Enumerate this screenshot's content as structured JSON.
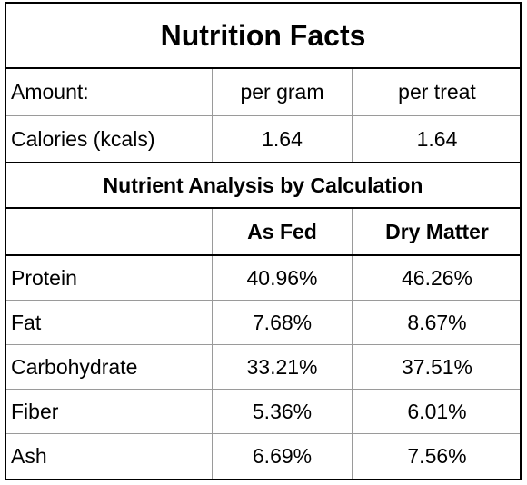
{
  "title": "Nutrition Facts",
  "amount_header": {
    "label": "Amount:",
    "col1": "per gram",
    "col2": "per treat"
  },
  "calories": {
    "label": "Calories (kcals)",
    "col1": "1.64",
    "col2": "1.64"
  },
  "analysis": {
    "title": "Nutrient Analysis by Calculation",
    "blank": "",
    "col1_header": "As Fed",
    "col2_header": "Dry Matter",
    "rows": [
      {
        "label": "Protein",
        "as_fed": "40.96%",
        "dry_matter": "46.26%"
      },
      {
        "label": "Fat",
        "as_fed": "7.68%",
        "dry_matter": "8.67%"
      },
      {
        "label": "Carbohydrate",
        "as_fed": "33.21%",
        "dry_matter": "37.51%"
      },
      {
        "label": "Fiber",
        "as_fed": "5.36%",
        "dry_matter": "6.01%"
      },
      {
        "label": "Ash",
        "as_fed": "6.69%",
        "dry_matter": "7.56%"
      }
    ]
  }
}
